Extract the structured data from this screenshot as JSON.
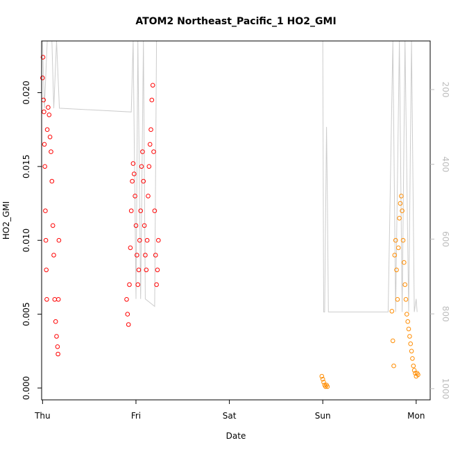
{
  "chart_data": {
    "type": "scatter",
    "title": "ATOM2 Northeast_Pacific_1 HO2_GMI",
    "xlabel": "Date",
    "ylabel": "HO2_GMI",
    "x_ticks": [
      "Thu",
      "Fri",
      "Sat",
      "Sun",
      "Mon"
    ],
    "xlim": [
      -0.01,
      4.15
    ],
    "ylim": [
      -0.0008,
      0.0235
    ],
    "y_ticks": [
      "0.000",
      "0.005",
      "0.010",
      "0.015",
      "0.020"
    ],
    "y_tick_values": [
      0.0,
      0.005,
      0.01,
      0.015,
      0.02
    ],
    "y2_ticks": [
      "200",
      "400",
      "600",
      "800",
      "1000"
    ],
    "y2_tick_values": [
      200,
      400,
      600,
      800,
      1000
    ],
    "y2lim": [
      70,
      1030
    ],
    "y2_reversed": true,
    "grid": false,
    "legend": "none",
    "series": [
      {
        "color": "#FF0000",
        "marker": "open-circle",
        "points": [
          [
            0.0,
            0.021
          ],
          [
            0.005,
            0.0224
          ],
          [
            0.01,
            0.0195
          ],
          [
            0.015,
            0.0187
          ],
          [
            0.02,
            0.0165
          ],
          [
            0.025,
            0.015
          ],
          [
            0.03,
            0.012
          ],
          [
            0.035,
            0.01
          ],
          [
            0.04,
            0.008
          ],
          [
            0.045,
            0.006
          ],
          [
            0.05,
            0.0175
          ],
          [
            0.06,
            0.019
          ],
          [
            0.07,
            0.0185
          ],
          [
            0.08,
            0.017
          ],
          [
            0.09,
            0.016
          ],
          [
            0.1,
            0.014
          ],
          [
            0.11,
            0.011
          ],
          [
            0.12,
            0.009
          ],
          [
            0.13,
            0.006
          ],
          [
            0.14,
            0.0045
          ],
          [
            0.15,
            0.0035
          ],
          [
            0.16,
            0.0028
          ],
          [
            0.165,
            0.0023
          ],
          [
            0.17,
            0.006
          ],
          [
            0.175,
            0.01
          ],
          [
            0.9,
            0.006
          ],
          [
            0.91,
            0.005
          ],
          [
            0.92,
            0.0043
          ],
          [
            0.93,
            0.007
          ],
          [
            0.94,
            0.0095
          ],
          [
            0.95,
            0.012
          ],
          [
            0.96,
            0.014
          ],
          [
            0.97,
            0.0152
          ],
          [
            0.98,
            0.0145
          ],
          [
            0.99,
            0.013
          ],
          [
            1.0,
            0.011
          ],
          [
            1.01,
            0.009
          ],
          [
            1.02,
            0.007
          ],
          [
            1.03,
            0.008
          ],
          [
            1.04,
            0.01
          ],
          [
            1.05,
            0.012
          ],
          [
            1.06,
            0.015
          ],
          [
            1.07,
            0.016
          ],
          [
            1.08,
            0.014
          ],
          [
            1.09,
            0.011
          ],
          [
            1.1,
            0.009
          ],
          [
            1.11,
            0.008
          ],
          [
            1.12,
            0.01
          ],
          [
            1.13,
            0.013
          ],
          [
            1.14,
            0.015
          ],
          [
            1.15,
            0.0165
          ],
          [
            1.16,
            0.0175
          ],
          [
            1.17,
            0.0195
          ],
          [
            1.18,
            0.0205
          ],
          [
            1.19,
            0.016
          ],
          [
            1.2,
            0.012
          ],
          [
            1.21,
            0.009
          ],
          [
            1.22,
            0.007
          ],
          [
            1.23,
            0.008
          ],
          [
            1.24,
            0.01
          ]
        ]
      },
      {
        "color": "#FF8C00",
        "marker": "open-circle",
        "points": [
          [
            2.99,
            0.0008
          ],
          [
            3.0,
            0.0006
          ],
          [
            3.01,
            0.0004
          ],
          [
            3.02,
            0.0002
          ],
          [
            3.03,
            0.0001
          ],
          [
            3.04,
            0.0002
          ],
          [
            3.05,
            0.0001
          ],
          [
            3.74,
            0.0052
          ],
          [
            3.75,
            0.0032
          ],
          [
            3.76,
            0.0015
          ],
          [
            3.77,
            0.009
          ],
          [
            3.78,
            0.01
          ],
          [
            3.79,
            0.008
          ],
          [
            3.8,
            0.006
          ],
          [
            3.81,
            0.0095
          ],
          [
            3.82,
            0.0115
          ],
          [
            3.83,
            0.0125
          ],
          [
            3.84,
            0.013
          ],
          [
            3.85,
            0.012
          ],
          [
            3.86,
            0.01
          ],
          [
            3.87,
            0.0085
          ],
          [
            3.88,
            0.007
          ],
          [
            3.89,
            0.006
          ],
          [
            3.9,
            0.005
          ],
          [
            3.91,
            0.0045
          ],
          [
            3.92,
            0.004
          ],
          [
            3.93,
            0.0035
          ],
          [
            3.94,
            0.003
          ],
          [
            3.95,
            0.0025
          ],
          [
            3.96,
            0.002
          ],
          [
            3.97,
            0.0015
          ],
          [
            3.98,
            0.0012
          ],
          [
            3.99,
            0.001
          ],
          [
            4.0,
            0.0008
          ],
          [
            4.01,
            0.001
          ],
          [
            4.02,
            0.0009
          ]
        ]
      },
      {
        "color": "#CCCCCC",
        "marker": "line",
        "axis": "secondary",
        "points": [
          [
            0.0,
            70
          ],
          [
            0.02,
            250
          ],
          [
            0.05,
            70
          ],
          [
            0.1,
            70
          ],
          [
            0.12,
            250
          ],
          [
            0.15,
            70
          ],
          [
            0.18,
            250
          ],
          [
            0.95,
            260
          ],
          [
            0.97,
            70
          ],
          [
            1.0,
            760
          ],
          [
            1.02,
            70
          ],
          [
            1.05,
            760
          ],
          [
            1.08,
            70
          ],
          [
            1.1,
            760
          ],
          [
            1.2,
            780
          ],
          [
            1.22,
            70
          ],
          [
            3.0,
            70
          ],
          [
            3.01,
            795
          ],
          [
            3.02,
            795
          ],
          [
            3.04,
            300
          ],
          [
            3.05,
            500
          ],
          [
            3.06,
            795
          ],
          [
            3.7,
            795
          ],
          [
            3.75,
            70
          ],
          [
            3.78,
            795
          ],
          [
            3.82,
            70
          ],
          [
            3.85,
            795
          ],
          [
            3.88,
            70
          ],
          [
            3.92,
            795
          ],
          [
            3.95,
            70
          ],
          [
            3.98,
            795
          ],
          [
            4.0,
            760
          ],
          [
            4.01,
            795
          ]
        ]
      }
    ]
  }
}
